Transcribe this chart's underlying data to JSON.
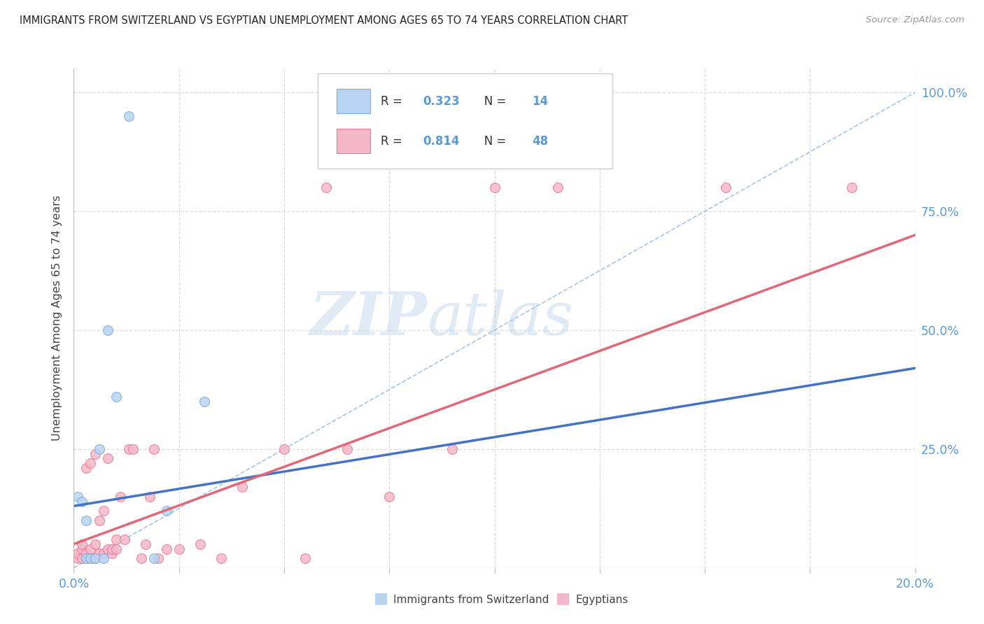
{
  "title": "IMMIGRANTS FROM SWITZERLAND VS EGYPTIAN UNEMPLOYMENT AMONG AGES 65 TO 74 YEARS CORRELATION CHART",
  "source": "Source: ZipAtlas.com",
  "ylabel": "Unemployment Among Ages 65 to 74 years",
  "legend_label1": "Immigrants from Switzerland",
  "legend_label2": "Egyptians",
  "R1": "0.323",
  "N1": "14",
  "R2": "0.814",
  "N2": "48",
  "watermark_zip": "ZIP",
  "watermark_atlas": "atlas",
  "blue_scatter_color": "#B8D4F0",
  "blue_scatter_edge": "#7AABDF",
  "pink_scatter_color": "#F5B8C8",
  "pink_scatter_edge": "#E87898",
  "blue_line_color": "#4472C4",
  "pink_line_color": "#E06878",
  "ref_line_color": "#9BBFE0",
  "title_color": "#222222",
  "axis_color": "#5B9BD5",
  "grid_color": "#DDDDDD",
  "ytick_values": [
    0.0,
    0.25,
    0.5,
    0.75,
    1.0
  ],
  "ytick_labels_right": [
    "",
    "25.0%",
    "50.0%",
    "75.0%",
    "100.0%"
  ],
  "xtick_values": [
    0.0,
    0.025,
    0.05,
    0.075,
    0.1,
    0.125,
    0.15,
    0.175,
    0.2
  ],
  "swiss_x": [
    0.001,
    0.002,
    0.003,
    0.003,
    0.004,
    0.005,
    0.006,
    0.007,
    0.008,
    0.01,
    0.013,
    0.019,
    0.022,
    0.031
  ],
  "swiss_y": [
    0.15,
    0.14,
    0.02,
    0.1,
    0.02,
    0.02,
    0.25,
    0.02,
    0.5,
    0.36,
    0.95,
    0.02,
    0.12,
    0.35
  ],
  "egypt_x": [
    0.001,
    0.001,
    0.002,
    0.002,
    0.002,
    0.003,
    0.003,
    0.003,
    0.004,
    0.004,
    0.004,
    0.005,
    0.005,
    0.005,
    0.006,
    0.006,
    0.007,
    0.007,
    0.008,
    0.008,
    0.009,
    0.009,
    0.01,
    0.01,
    0.011,
    0.012,
    0.013,
    0.014,
    0.016,
    0.017,
    0.018,
    0.019,
    0.02,
    0.022,
    0.025,
    0.03,
    0.035,
    0.04,
    0.05,
    0.055,
    0.06,
    0.065,
    0.075,
    0.09,
    0.1,
    0.115,
    0.155,
    0.185
  ],
  "egypt_y": [
    0.02,
    0.03,
    0.02,
    0.04,
    0.05,
    0.02,
    0.03,
    0.21,
    0.02,
    0.04,
    0.22,
    0.02,
    0.05,
    0.24,
    0.03,
    0.1,
    0.03,
    0.12,
    0.04,
    0.23,
    0.03,
    0.04,
    0.04,
    0.06,
    0.15,
    0.06,
    0.25,
    0.25,
    0.02,
    0.05,
    0.15,
    0.25,
    0.02,
    0.04,
    0.04,
    0.05,
    0.02,
    0.17,
    0.25,
    0.02,
    0.8,
    0.25,
    0.15,
    0.25,
    0.8,
    0.8,
    0.8,
    0.8
  ],
  "blue_line_x0": 0.0,
  "blue_line_y0": 0.13,
  "blue_line_x1": 0.2,
  "blue_line_y1": 0.42,
  "pink_line_x0": 0.0,
  "pink_line_y0": 0.05,
  "pink_line_x1": 0.2,
  "pink_line_y1": 0.7
}
